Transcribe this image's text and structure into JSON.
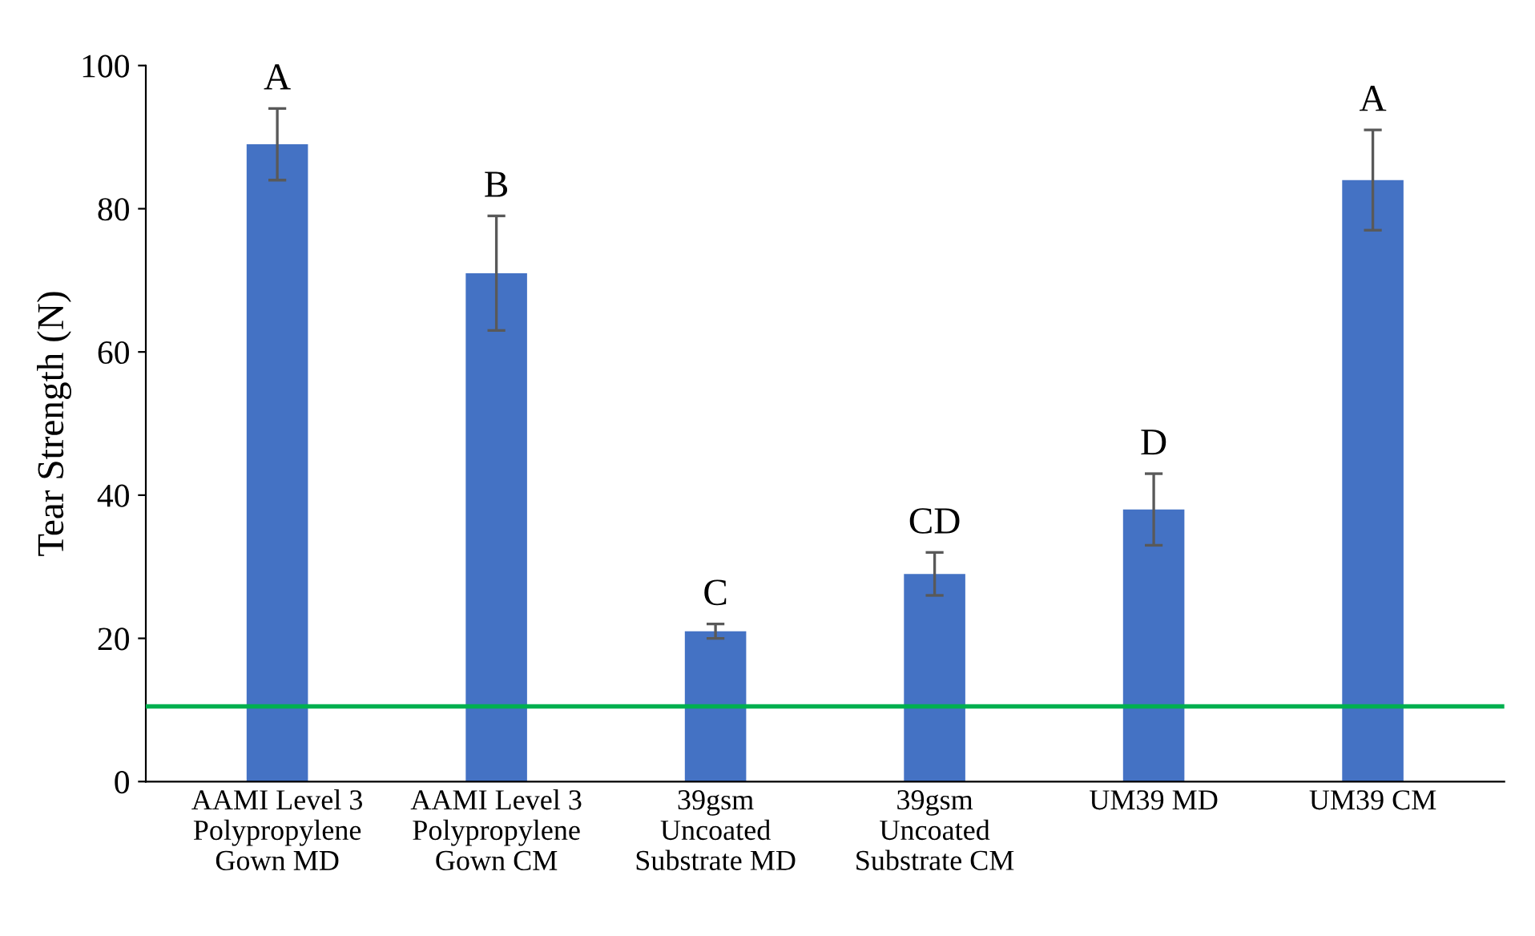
{
  "chart_data": {
    "type": "bar",
    "ylabel": "Tear Strength (N)",
    "categories": [
      "AAMI Level 3\nPolypropylene\nGown MD",
      "AAMI Level 3\nPolypropylene\nGown CM",
      "39gsm\nUncoated\nSubstrate MD",
      "39gsm\nUncoated\nSubstrate CM",
      "UM39 MD",
      "UM39 CM"
    ],
    "values": [
      89,
      71,
      21,
      29,
      38,
      84
    ],
    "errors": [
      5,
      8,
      1,
      3,
      5,
      7
    ],
    "color": "#4472c4",
    "ylim": [
      0,
      100
    ],
    "yticks": [
      0,
      20,
      40,
      60,
      80,
      100
    ],
    "grid": false,
    "ref_lines": [
      {
        "axis": "y",
        "value": 10.5,
        "color": "#00b050"
      }
    ],
    "annotations": [
      {
        "text": "A",
        "x": "AAMI Level 3\nPolypropylene\nGown MD",
        "y": 94
      },
      {
        "text": "B",
        "x": "AAMI Level 3\nPolypropylene\nGown CM",
        "y": 79
      },
      {
        "text": "C",
        "x": "39gsm\nUncoated\nSubstrate MD",
        "y": 22
      },
      {
        "text": "CD",
        "x": "39gsm\nUncoated\nSubstrate CM",
        "y": 32
      },
      {
        "text": "D",
        "x": "UM39 MD",
        "y": 43
      },
      {
        "text": "A",
        "x": "UM39 CM",
        "y": 91
      }
    ]
  }
}
